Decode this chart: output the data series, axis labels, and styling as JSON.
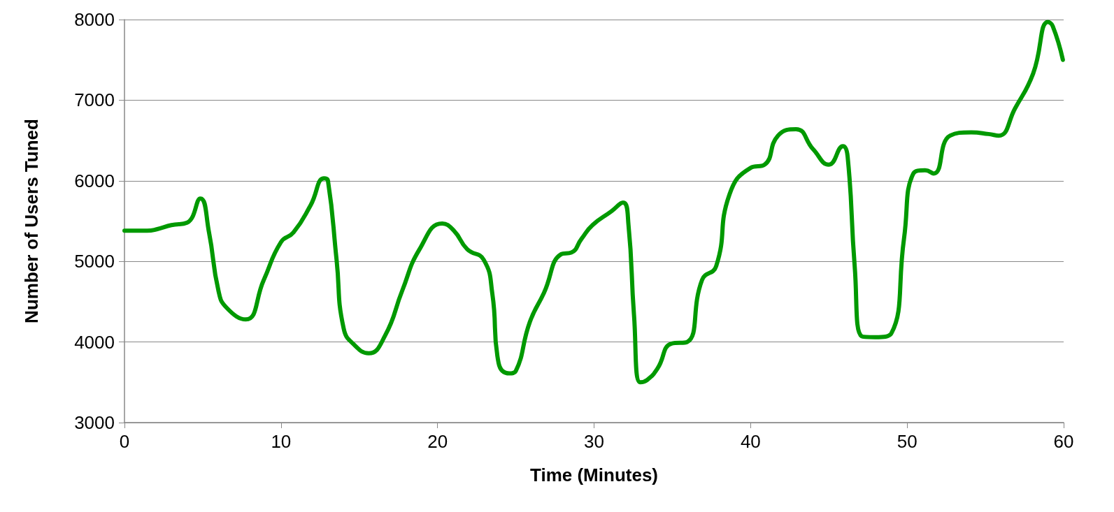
{
  "chart_data": {
    "type": "line",
    "xlabel": "Time (Minutes)",
    "ylabel": "Number of Users Tuned",
    "x": [
      0,
      1.45,
      2.1,
      3.0,
      4.0,
      4.85,
      5.4,
      6.0,
      6.5,
      7.75,
      8.9,
      10.0,
      10.8,
      11.9,
      12.75,
      13.0,
      13.55,
      14.0,
      14.7,
      15.6,
      16.65,
      17.75,
      18.85,
      20.3,
      21.05,
      21.9,
      22.95,
      23.5,
      23.9,
      24.6,
      25.0,
      25.9,
      26.8,
      27.9,
      28.55,
      29.2,
      29.9,
      31.1,
      31.85,
      32.2,
      32.55,
      32.95,
      33.4,
      34.05,
      34.95,
      35.95,
      36.9,
      37.8,
      38.65,
      40.0,
      40.9,
      41.75,
      42.9,
      44.0,
      45.0,
      45.9,
      46.2,
      46.65,
      47.1,
      47.95,
      49.0,
      49.8,
      50.4,
      51.15,
      51.7,
      52.75,
      54.1,
      55.2,
      55.85,
      56.9,
      58.05,
      59.0,
      59.3,
      59.95
    ],
    "series": [
      {
        "color": "#009900",
        "values": [
          5380,
          5380,
          5400,
          5450,
          5480,
          5780,
          5360,
          4640,
          4430,
          4280,
          4770,
          5240,
          5360,
          5700,
          6030,
          6000,
          5020,
          4170,
          3960,
          3860,
          4080,
          4640,
          5150,
          5470,
          5380,
          5150,
          5020,
          4600,
          3740,
          3610,
          3640,
          4250,
          4610,
          5090,
          5110,
          5280,
          5450,
          5620,
          5730,
          5450,
          4340,
          3500,
          3530,
          3670,
          3980,
          4000,
          4770,
          4940,
          5830,
          6160,
          6200,
          6560,
          6640,
          6390,
          6200,
          6430,
          6300,
          4940,
          4070,
          4060,
          4110,
          5280,
          6090,
          6130,
          6090,
          6560,
          6600,
          6580,
          6560,
          6900,
          7330,
          7970,
          7920,
          7500
        ]
      }
    ],
    "xlim": [
      0,
      60
    ],
    "xticks": [
      0,
      10,
      20,
      30,
      40,
      50,
      60
    ],
    "ylim": [
      3000,
      8000
    ],
    "yticks": [
      3000,
      4000,
      5000,
      6000,
      7000,
      8000
    ],
    "grid": "y",
    "marker": "none",
    "line_style": "solid"
  }
}
